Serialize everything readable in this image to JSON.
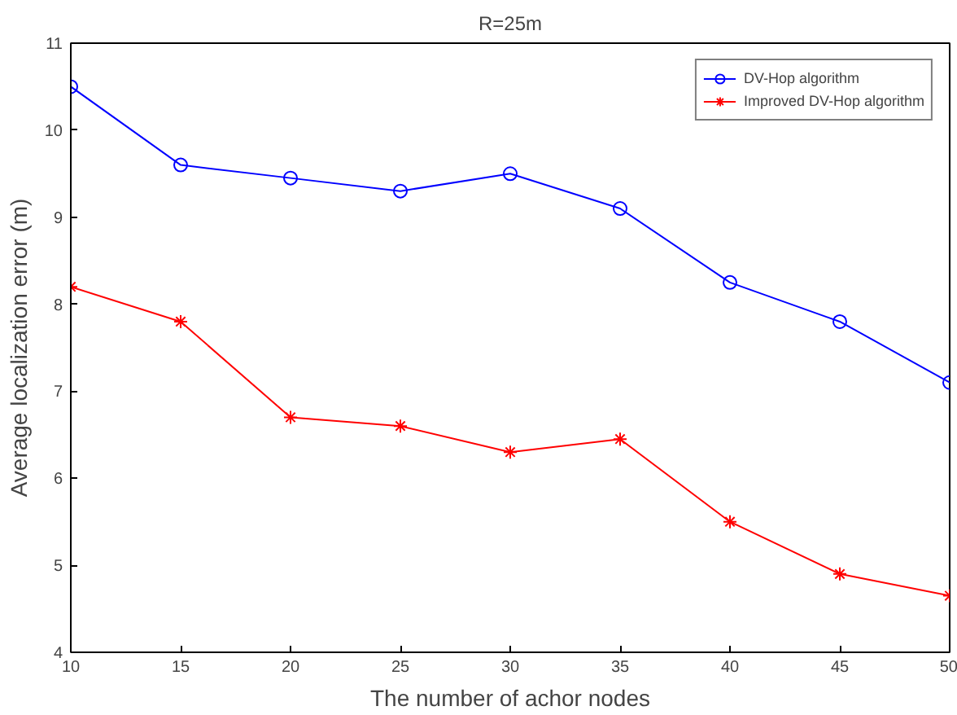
{
  "chart_data": {
    "type": "line",
    "title": "R=25m",
    "xlabel": "The number of achor nodes",
    "ylabel": "Average localization error (m)",
    "x": [
      10,
      15,
      20,
      25,
      30,
      35,
      40,
      45,
      50
    ],
    "series": [
      {
        "name": "DV-Hop algorithm",
        "color": "#0000ff",
        "marker": "circle",
        "values": [
          10.5,
          9.6,
          9.45,
          9.3,
          9.5,
          9.1,
          8.25,
          7.8,
          7.1
        ]
      },
      {
        "name": "Improved DV-Hop algorithm",
        "color": "#ff0000",
        "marker": "cross",
        "values": [
          8.2,
          7.8,
          6.7,
          6.6,
          6.3,
          6.45,
          5.5,
          4.9,
          4.65
        ]
      }
    ],
    "xlim": [
      10,
      50
    ],
    "xticks": [
      10,
      15,
      20,
      25,
      30,
      35,
      40,
      45,
      50
    ],
    "ylim": [
      4,
      11
    ],
    "yticks": [
      4,
      5,
      6,
      7,
      8,
      9,
      10,
      11
    ],
    "grid": false,
    "legend": "top right",
    "line_style": "solid"
  }
}
